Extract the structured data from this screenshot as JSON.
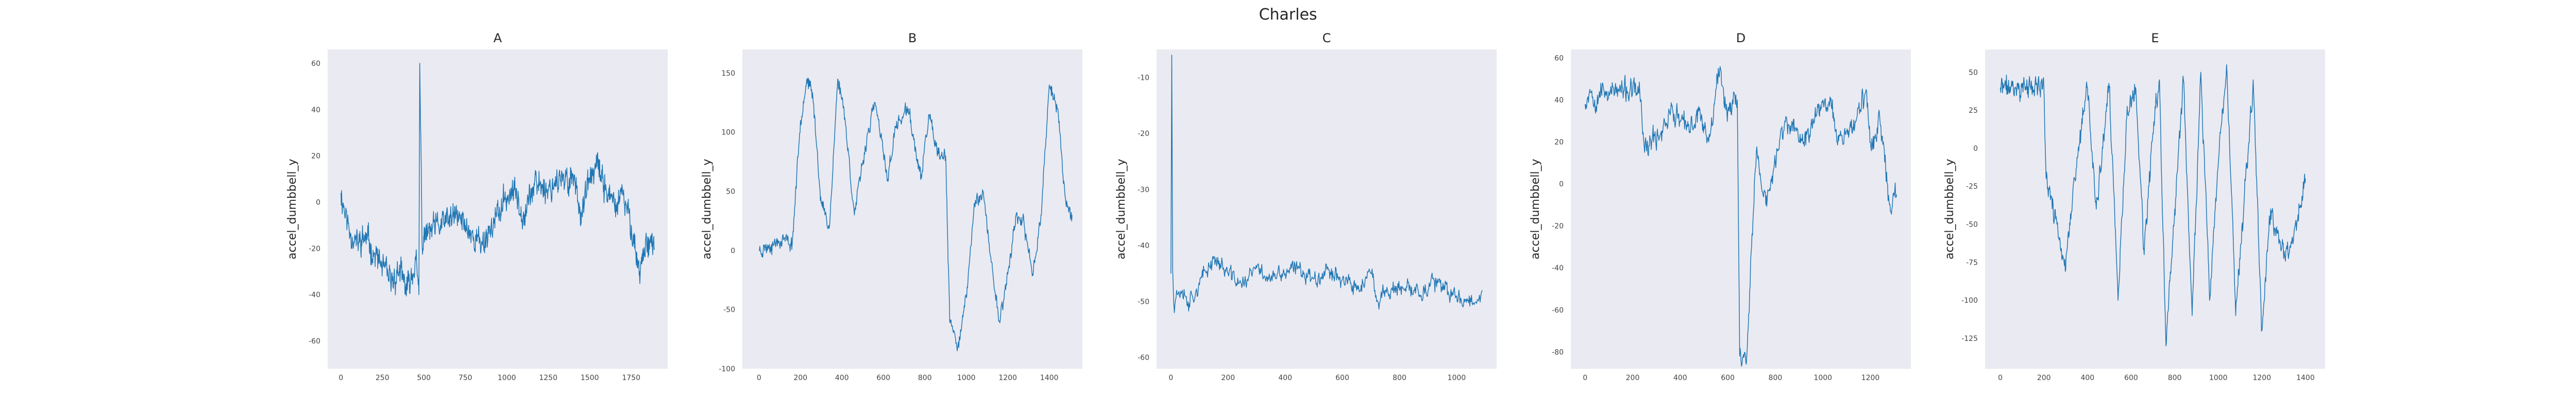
{
  "figure": {
    "title": "Charles"
  },
  "colors": {
    "line": "#1f77b4",
    "plot_bg": "#eaeaf2",
    "grid": "#ffffff",
    "text": "#262626"
  },
  "chart_data": [
    {
      "type": "line",
      "title": "A",
      "ylabel": "accel_dumbbell_y",
      "xlabel": "",
      "xlim": [
        -80,
        1970
      ],
      "ylim": [
        -72,
        66
      ],
      "xticks": [
        0,
        250,
        500,
        750,
        1000,
        1250,
        1500,
        1750
      ],
      "yticks": [
        -60,
        -40,
        -20,
        0,
        20,
        40,
        60
      ],
      "grid": false,
      "series_seed": 11,
      "series": [
        {
          "x": [
            0,
            50,
            100,
            150,
            200,
            250,
            300,
            350,
            400,
            450,
            470,
            475,
            490,
            500,
            550,
            600,
            650,
            700,
            750,
            800,
            850,
            900,
            950,
            1000,
            1050,
            1100,
            1150,
            1200,
            1250,
            1300,
            1350,
            1400,
            1450,
            1500,
            1550,
            1600,
            1650,
            1700,
            1750,
            1800,
            1850,
            1890
          ],
          "y": [
            4,
            -12,
            -18,
            -15,
            -22,
            -28,
            -35,
            -30,
            -38,
            -25,
            -40,
            60,
            -20,
            -15,
            -12,
            -10,
            -8,
            -6,
            -10,
            -15,
            -18,
            -12,
            -5,
            2,
            5,
            -5,
            5,
            8,
            5,
            10,
            8,
            12,
            -5,
            10,
            15,
            5,
            -2,
            3,
            -10,
            -30,
            -15,
            -20
          ],
          "noise": 9
        }
      ]
    },
    {
      "type": "line",
      "title": "B",
      "ylabel": "accel_dumbbell_y",
      "xlabel": "",
      "xlim": [
        -80,
        1560
      ],
      "ylim": [
        -100,
        170
      ],
      "xticks": [
        0,
        200,
        400,
        600,
        800,
        1000,
        1200,
        1400
      ],
      "yticks": [
        -100,
        -50,
        0,
        50,
        100,
        150
      ],
      "grid": false,
      "series_seed": 23,
      "series": [
        {
          "x": [
            0,
            60,
            120,
            160,
            200,
            230,
            260,
            300,
            340,
            380,
            410,
            460,
            520,
            560,
            620,
            660,
            720,
            780,
            820,
            860,
            880,
            900,
            920,
            960,
            1000,
            1040,
            1080,
            1120,
            1160,
            1200,
            1240,
            1280,
            1320,
            1360,
            1400,
            1440,
            1480,
            1510
          ],
          "y": [
            0,
            5,
            10,
            5,
            110,
            145,
            130,
            40,
            20,
            145,
            120,
            30,
            95,
            125,
            60,
            105,
            120,
            60,
            115,
            80,
            80,
            80,
            -60,
            -80,
            -40,
            40,
            50,
            -10,
            -60,
            -20,
            30,
            20,
            -20,
            30,
            140,
            120,
            40,
            30
          ],
          "noise": 9
        }
      ]
    },
    {
      "type": "line",
      "title": "C",
      "ylabel": "accel_dumbbell_y",
      "xlabel": "",
      "xlim": [
        -50,
        1140
      ],
      "ylim": [
        -62,
        -5
      ],
      "xticks": [
        0,
        200,
        400,
        600,
        800,
        1000
      ],
      "yticks": [
        -60,
        -50,
        -40,
        -30,
        -20,
        -10
      ],
      "grid": false,
      "series_seed": 37,
      "series": [
        {
          "x": [
            0,
            3,
            6,
            12,
            20,
            40,
            60,
            100,
            150,
            200,
            250,
            300,
            350,
            400,
            450,
            500,
            550,
            600,
            650,
            700,
            720,
            750,
            800,
            850,
            900,
            920,
            950,
            1000,
            1050,
            1090
          ],
          "y": [
            -45,
            -6,
            -44,
            -52,
            -48,
            -48,
            -50,
            -47,
            -42,
            -45,
            -47,
            -44,
            -46,
            -45,
            -44,
            -46,
            -44,
            -46,
            -48,
            -45,
            -50,
            -48,
            -48,
            -48,
            -48,
            -46,
            -48,
            -49,
            -50,
            -48
          ],
          "noise": 2.3
        }
      ]
    },
    {
      "type": "line",
      "title": "D",
      "ylabel": "accel_dumbbell_y",
      "xlabel": "",
      "xlim": [
        -60,
        1370
      ],
      "ylim": [
        -88,
        64
      ],
      "xticks": [
        0,
        200,
        400,
        600,
        800,
        1000,
        1200
      ],
      "yticks": [
        -80,
        -60,
        -40,
        -20,
        0,
        20,
        40,
        60
      ],
      "grid": false,
      "series_seed": 53,
      "series": [
        {
          "x": [
            0,
            20,
            40,
            60,
            80,
            100,
            150,
            200,
            230,
            250,
            280,
            320,
            360,
            400,
            440,
            480,
            520,
            560,
            600,
            620,
            640,
            650,
            680,
            700,
            720,
            760,
            800,
            840,
            880,
            920,
            960,
            1000,
            1040,
            1060,
            1100,
            1140,
            1180,
            1200,
            1240,
            1280,
            1310
          ],
          "y": [
            38,
            45,
            40,
            44,
            44,
            44,
            44,
            44,
            44,
            15,
            20,
            25,
            35,
            30,
            25,
            35,
            20,
            55,
            35,
            40,
            40,
            -82,
            -82,
            -30,
            15,
            -10,
            10,
            30,
            25,
            20,
            30,
            40,
            40,
            20,
            25,
            30,
            44,
            20,
            30,
            -10,
            -5
          ],
          "noise": 8
        }
      ]
    },
    {
      "type": "line",
      "title": "E",
      "ylabel": "accel_dumbbell_y",
      "xlabel": "",
      "xlim": [
        -70,
        1490
      ],
      "ylim": [
        -145,
        65
      ],
      "xticks": [
        0,
        200,
        400,
        600,
        800,
        1000,
        1200,
        1400
      ],
      "yticks": [
        -125,
        -100,
        -75,
        -50,
        -25,
        0,
        25,
        50
      ],
      "grid": false,
      "series_seed": 71,
      "series": [
        {
          "x": [
            0,
            100,
            200,
            210,
            260,
            300,
            340,
            400,
            440,
            470,
            500,
            540,
            580,
            620,
            660,
            700,
            730,
            760,
            800,
            840,
            880,
            920,
            960,
            1000,
            1040,
            1080,
            1120,
            1160,
            1200,
            1240,
            1280,
            1320,
            1360,
            1400
          ],
          "y": [
            40,
            40,
            40,
            -20,
            -50,
            -80,
            -20,
            40,
            -40,
            0,
            40,
            -100,
            20,
            40,
            -70,
            10,
            45,
            -130,
            -40,
            45,
            -110,
            50,
            -100,
            -10,
            50,
            -110,
            -30,
            45,
            -120,
            -40,
            -60,
            -70,
            -50,
            -20
          ],
          "noise": 11
        }
      ]
    }
  ]
}
